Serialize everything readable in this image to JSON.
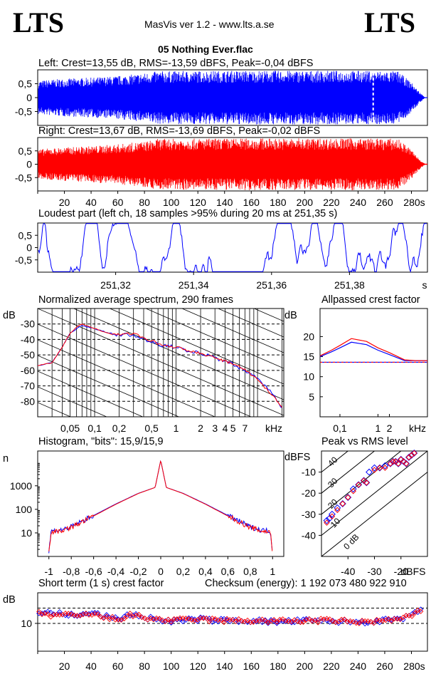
{
  "header": {
    "logo_left": "LTS",
    "logo_right": "LTS",
    "app_title": "MasVis ver 1.2 - www.lts.a.se",
    "file_name": "05 Nothing Ever.flac"
  },
  "colors": {
    "left": "#0000ff",
    "right": "#ff0000",
    "grid": "#000000"
  },
  "panels": {
    "left_wave": {
      "title": "Left: Crest=13,55 dB, RMS=-13,59 dBFS, Peak=-0,04 dBFS",
      "yticks": [
        "0,5",
        "0",
        "-0,5"
      ]
    },
    "right_wave": {
      "title": "Right: Crest=13,67 dB, RMS=-13,69 dBFS, Peak=-0,02 dBFS",
      "yticks": [
        "0,5",
        "0",
        "-0,5"
      ]
    },
    "loudest": {
      "title": "Loudest part (left  ch, 18 samples >95% during 20 ms at 251,35 s)",
      "yticks": [
        "0,5",
        "0",
        "-0,5"
      ],
      "xticks": [
        "251,32",
        "251,34",
        "251,36",
        "251,38",
        "s"
      ]
    },
    "spectrum": {
      "title": "Normalized average spectrum, 290 frames",
      "yunit": "dB",
      "yticks": [
        "-30",
        "-40",
        "-50",
        "-60",
        "-70",
        "-80"
      ],
      "xticks": [
        "0,05",
        "0,1",
        "0,2",
        "0,5",
        "1",
        "2",
        "3",
        "4",
        "5",
        "7",
        "kHz"
      ]
    },
    "allpass": {
      "title": "Allpassed crest factor",
      "yunit": "dB",
      "yticks": [
        "20",
        "15",
        "10",
        "5"
      ],
      "xticks": [
        "0,1",
        "1",
        "2",
        "kHz"
      ]
    },
    "histogram": {
      "title": "Histogram, \"bits\": 15,9/15,9",
      "yunit": "n",
      "yticks": [
        "1000",
        "100",
        "10"
      ],
      "xticks": [
        "-1",
        "-0,8",
        "-0,6",
        "-0,4",
        "-0,2",
        "0",
        "0,2",
        "0,4",
        "0,6",
        "0,8",
        "1"
      ]
    },
    "peak_rms": {
      "title": "Peak vs RMS level",
      "yunit": "dBFS",
      "yticks": [
        "-10",
        "-20",
        "-30",
        "-40"
      ],
      "xticks": [
        "-40",
        "-30",
        "-20",
        "dBFS"
      ],
      "diag_labels": [
        "40",
        "30",
        "20",
        "10",
        "0 dB"
      ]
    },
    "short_term": {
      "title": "Short term (1 s) crest factor",
      "checksum": "Checksum (energy):  1 192 073 480 922 910",
      "yunit": "dB",
      "yticks": [
        "10"
      ]
    }
  },
  "time_axis": {
    "ticks": [
      "20",
      "40",
      "60",
      "80",
      "100",
      "120",
      "140",
      "160",
      "180",
      "200",
      "220",
      "240",
      "260",
      "280s"
    ]
  },
  "chart_data": [
    {
      "type": "area",
      "title": "Left: Crest=13,55 dB, RMS=-13,59 dBFS, Peak=-0,04 dBFS",
      "xlabel": "s",
      "xlim": [
        0,
        292
      ],
      "ylim": [
        -1,
        1
      ],
      "marker_time": 251.35,
      "series": [
        {
          "name": "Left",
          "x": [
            0,
            10,
            20,
            40,
            60,
            80,
            90,
            120,
            160,
            200,
            240,
            270,
            280,
            286,
            290
          ],
          "envelope": [
            0.6,
            0.65,
            0.68,
            0.72,
            0.78,
            0.88,
            0.95,
            0.96,
            0.97,
            0.97,
            0.97,
            0.95,
            0.55,
            0.2,
            0.02
          ]
        }
      ]
    },
    {
      "type": "area",
      "title": "Right: Crest=13,67 dB, RMS=-13,69 dBFS, Peak=-0,02 dBFS",
      "xlabel": "s",
      "xlim": [
        0,
        292
      ],
      "ylim": [
        -1,
        1
      ],
      "series": [
        {
          "name": "Right",
          "x": [
            0,
            10,
            20,
            40,
            60,
            80,
            90,
            120,
            160,
            200,
            240,
            270,
            280,
            286,
            290
          ],
          "envelope": [
            0.55,
            0.6,
            0.63,
            0.68,
            0.75,
            0.85,
            0.95,
            0.96,
            0.97,
            0.97,
            0.97,
            0.95,
            0.55,
            0.2,
            0.02
          ]
        }
      ]
    },
    {
      "type": "line",
      "title": "Loudest part (left  ch, 18 samples >95% during 20 ms at 251,35 s)",
      "xlabel": "s",
      "xlim": [
        251.3,
        251.4
      ],
      "ylim": [
        -1,
        1
      ],
      "xticks": [
        251.32,
        251.34,
        251.36,
        251.38
      ]
    },
    {
      "type": "line",
      "title": "Normalized average spectrum, 290 frames",
      "xlabel": "kHz",
      "ylabel": "dB",
      "log_x": true,
      "xlim": [
        0.02,
        21
      ],
      "ylim": [
        -90,
        -20
      ],
      "series": [
        {
          "name": "Left",
          "x": [
            0.02,
            0.03,
            0.04,
            0.05,
            0.06,
            0.07,
            0.1,
            0.15,
            0.2,
            0.3,
            0.5,
            0.7,
            1,
            1.5,
            2,
            3,
            4,
            5,
            7,
            10,
            15,
            20
          ],
          "y": [
            -57,
            -55,
            -45,
            -36,
            -33,
            -31,
            -33,
            -36,
            -37,
            -37,
            -42,
            -44,
            -45,
            -48,
            -49,
            -52,
            -54,
            -56,
            -60,
            -65,
            -75,
            -84
          ]
        },
        {
          "name": "Right",
          "x": [
            0.02,
            0.03,
            0.04,
            0.05,
            0.06,
            0.07,
            0.1,
            0.15,
            0.2,
            0.3,
            0.5,
            0.7,
            1,
            1.5,
            2,
            3,
            4,
            5,
            7,
            10,
            15,
            20
          ],
          "y": [
            -57,
            -55,
            -45,
            -36,
            -32,
            -30,
            -33,
            -36,
            -37,
            -36,
            -41,
            -44,
            -45,
            -48,
            -49,
            -52,
            -54,
            -56,
            -59,
            -66,
            -76,
            -84
          ]
        }
      ]
    },
    {
      "type": "line",
      "title": "Allpassed crest factor",
      "xlabel": "kHz",
      "ylabel": "dB",
      "log_x": true,
      "xlim": [
        0.03,
        20
      ],
      "ylim": [
        0,
        27
      ],
      "reference_line": 13.6,
      "series": [
        {
          "name": "Left",
          "x": [
            0.03,
            0.06,
            0.1,
            0.2,
            0.5,
            1,
            2,
            5,
            10,
            20
          ],
          "y": [
            15.0,
            16.2,
            17.2,
            18.6,
            18.0,
            16.6,
            15.5,
            14.0,
            14.0,
            14.0
          ]
        },
        {
          "name": "Right",
          "x": [
            0.03,
            0.06,
            0.1,
            0.2,
            0.5,
            1,
            2,
            5,
            10,
            20
          ],
          "y": [
            15.2,
            16.6,
            17.8,
            19.5,
            18.8,
            17.2,
            16.0,
            14.2,
            14.0,
            14.0
          ]
        }
      ]
    },
    {
      "type": "line",
      "title": "Histogram, \"bits\": 15,9/15,9",
      "ylabel": "n",
      "log_y": true,
      "xlim": [
        -1.1,
        1.1
      ],
      "ylim": [
        1,
        30000
      ],
      "series": [
        {
          "name": "Left",
          "x": [
            -1,
            -0.98,
            -0.9,
            -0.8,
            -0.6,
            -0.4,
            -0.2,
            -0.05,
            0,
            0.05,
            0.2,
            0.4,
            0.6,
            0.8,
            0.9,
            0.98,
            1
          ],
          "y": [
            1.5,
            12,
            13,
            18,
            55,
            170,
            480,
            850,
            12000,
            850,
            480,
            170,
            55,
            18,
            13,
            12,
            1.5
          ]
        },
        {
          "name": "Right",
          "x": [
            -1,
            -0.98,
            -0.9,
            -0.8,
            -0.6,
            -0.4,
            -0.2,
            -0.05,
            0,
            0.05,
            0.2,
            0.4,
            0.6,
            0.8,
            0.9,
            0.98,
            1
          ],
          "y": [
            1.5,
            11,
            12,
            17,
            52,
            165,
            470,
            850,
            12000,
            850,
            470,
            165,
            52,
            17,
            12,
            11,
            1.5
          ]
        }
      ]
    },
    {
      "type": "scatter",
      "title": "Peak vs RMS level",
      "xlabel": "dBFS",
      "ylabel": "dBFS",
      "xlim": [
        -50,
        -10
      ],
      "ylim": [
        -50,
        0
      ],
      "series": [
        {
          "name": "Left",
          "x": [
            -48,
            -47,
            -46,
            -44,
            -42,
            -40,
            -38,
            -36,
            -34,
            -33,
            -32,
            -30,
            -28,
            -26,
            -24,
            -23,
            -22,
            -21,
            -20,
            -19,
            -18,
            -17,
            -16,
            -15
          ],
          "y": [
            -33,
            -32,
            -30,
            -27,
            -25,
            -22,
            -18,
            -16,
            -14,
            -15,
            -10,
            -8,
            -8,
            -7,
            -6,
            -5,
            -5,
            -6,
            -4,
            -5,
            -6,
            -3,
            -2,
            -1
          ]
        },
        {
          "name": "Right",
          "x": [
            -48,
            -46,
            -44,
            -42,
            -40,
            -38,
            -36,
            -34,
            -33,
            -30,
            -28,
            -26,
            -24,
            -23,
            -22,
            -21,
            -20,
            -19,
            -18,
            -17,
            -16,
            -15
          ],
          "y": [
            -34,
            -31,
            -28,
            -25,
            -22,
            -19,
            -16,
            -14,
            -15,
            -9,
            -8,
            -8,
            -6,
            -5,
            -5,
            -6,
            -4,
            -5,
            -6,
            -3,
            -2,
            -1
          ]
        }
      ]
    },
    {
      "type": "scatter",
      "title": "Short term (1 s) crest factor",
      "xlabel": "s",
      "ylabel": "dB",
      "xlim": [
        0,
        292
      ],
      "ylim": [
        0,
        21
      ],
      "dashed_lines": [
        10,
        15.5
      ],
      "series": [
        {
          "name": "Left",
          "x": [
            2,
            10,
            20,
            30,
            40,
            50,
            60,
            70,
            80,
            90,
            100,
            120,
            140,
            160,
            180,
            200,
            220,
            240,
            260,
            270,
            280,
            286
          ],
          "y": [
            14,
            13.5,
            13.5,
            12.5,
            14,
            12.5,
            11.5,
            13.5,
            12,
            11.5,
            10.8,
            11.5,
            11,
            11,
            10.5,
            11,
            10.8,
            10.5,
            11,
            11.5,
            12.5,
            15
          ]
        },
        {
          "name": "Right",
          "x": [
            2,
            10,
            20,
            30,
            40,
            50,
            60,
            70,
            80,
            90,
            100,
            120,
            140,
            160,
            180,
            200,
            220,
            240,
            260,
            270,
            280,
            286
          ],
          "y": [
            13.5,
            13,
            13,
            12.5,
            13.5,
            12,
            11.5,
            13,
            12,
            11.5,
            11,
            11.5,
            11,
            11,
            10.8,
            11,
            11,
            10.5,
            11,
            11.5,
            12.5,
            14.5
          ]
        }
      ]
    }
  ]
}
